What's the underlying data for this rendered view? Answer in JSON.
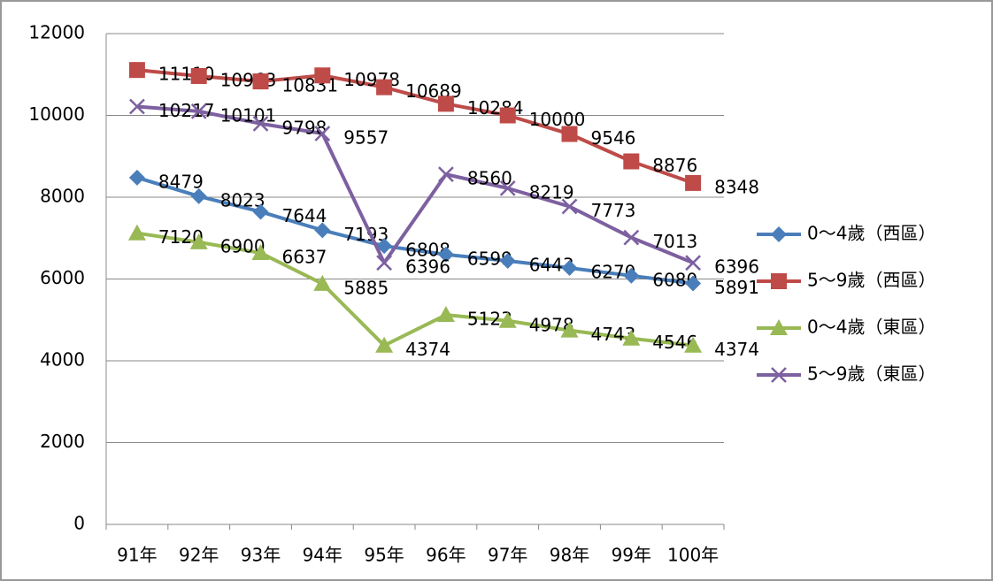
{
  "chart_data": {
    "type": "line",
    "categories": [
      "91年",
      "92年",
      "93年",
      "94年",
      "95年",
      "96年",
      "97年",
      "98年",
      "99年",
      "100年"
    ],
    "series": [
      {
        "name": "0～4歲（西區）",
        "color": "#4a7ebb",
        "marker": "diamond",
        "values": [
          8479,
          8023,
          7644,
          7193,
          6808,
          6599,
          6443,
          6270,
          6080,
          5891
        ]
      },
      {
        "name": "5～9歲（西區）",
        "color": "#be4b48",
        "marker": "square",
        "values": [
          11110,
          10963,
          10831,
          10978,
          10689,
          10284,
          10000,
          9546,
          8876,
          8348
        ]
      },
      {
        "name": "0～4歲（東區）",
        "color": "#98b954",
        "marker": "triangle",
        "values": [
          7120,
          6900,
          6637,
          5885,
          4374,
          5123,
          4978,
          4743,
          4546,
          4374
        ]
      },
      {
        "name": "5～9歲（東區）",
        "color": "#7d60a0",
        "marker": "x",
        "values": [
          10217,
          10101,
          9798,
          9557,
          6396,
          8560,
          8219,
          7773,
          7013,
          6396
        ]
      }
    ],
    "ylim": [
      0,
      12000
    ],
    "yticks": [
      0,
      2000,
      4000,
      6000,
      8000,
      10000,
      12000
    ],
    "grid": true,
    "legend": "right"
  }
}
